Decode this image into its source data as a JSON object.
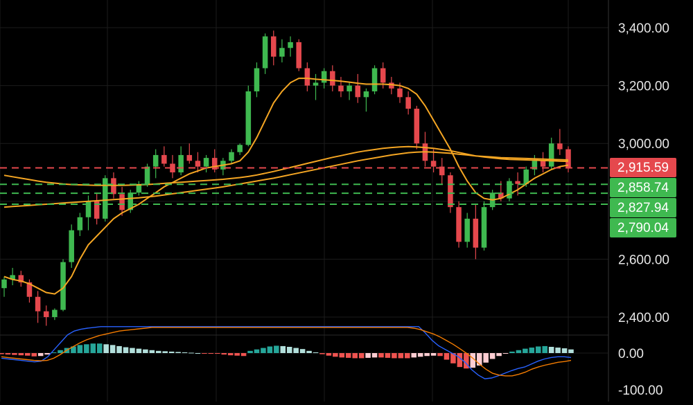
{
  "chart_data": [
    {
      "type": "candlestick",
      "title": "",
      "ylim": [
        2350,
        3450
      ],
      "y_ticks": [
        2400,
        2600,
        3000,
        3200,
        3400
      ],
      "y_tick_labels": [
        "2,400.00",
        "2,600.00",
        "3,000.00",
        "3,200.00",
        "3,400.00"
      ],
      "grid": true,
      "colors": {
        "up": "#3fb950",
        "down": "#e5484d",
        "ma": "#f5a623",
        "background": "#000000"
      },
      "candles": [
        [
          2500,
          2540,
          2470,
          2530
        ],
        [
          2530,
          2570,
          2510,
          2545
        ],
        [
          2545,
          2560,
          2505,
          2520
        ],
        [
          2520,
          2530,
          2450,
          2470
        ],
        [
          2470,
          2490,
          2380,
          2420
        ],
        [
          2420,
          2440,
          2370,
          2400
        ],
        [
          2400,
          2430,
          2390,
          2425
        ],
        [
          2425,
          2600,
          2420,
          2590
        ],
        [
          2590,
          2720,
          2570,
          2700
        ],
        [
          2700,
          2760,
          2680,
          2745
        ],
        [
          2745,
          2820,
          2700,
          2800
        ],
        [
          2800,
          2830,
          2720,
          2740
        ],
        [
          2740,
          2890,
          2730,
          2880
        ],
        [
          2880,
          2900,
          2810,
          2825
        ],
        [
          2825,
          2850,
          2750,
          2770
        ],
        [
          2770,
          2840,
          2760,
          2830
        ],
        [
          2830,
          2870,
          2820,
          2860
        ],
        [
          2860,
          2930,
          2850,
          2920
        ],
        [
          2920,
          2980,
          2880,
          2960
        ],
        [
          2960,
          2990,
          2920,
          2930
        ],
        [
          2930,
          2960,
          2880,
          2900
        ],
        [
          2900,
          2990,
          2890,
          2960
        ],
        [
          2960,
          3000,
          2930,
          2940
        ],
        [
          2940,
          2970,
          2900,
          2920
        ],
        [
          2920,
          2960,
          2900,
          2950
        ],
        [
          2950,
          2980,
          2900,
          2910
        ],
        [
          2910,
          2950,
          2890,
          2940
        ],
        [
          2940,
          2980,
          2930,
          2970
        ],
        [
          2970,
          3000,
          2960,
          2995
        ],
        [
          2995,
          3200,
          2990,
          3180
        ],
        [
          3180,
          3280,
          3160,
          3260
        ],
        [
          3260,
          3380,
          3240,
          3370
        ],
        [
          3370,
          3390,
          3270,
          3300
        ],
        [
          3300,
          3360,
          3280,
          3330
        ],
        [
          3330,
          3370,
          3300,
          3350
        ],
        [
          3350,
          3360,
          3250,
          3260
        ],
        [
          3260,
          3280,
          3180,
          3200
        ],
        [
          3200,
          3240,
          3150,
          3210
        ],
        [
          3210,
          3260,
          3190,
          3250
        ],
        [
          3250,
          3270,
          3180,
          3200
        ],
        [
          3200,
          3230,
          3160,
          3180
        ],
        [
          3180,
          3210,
          3150,
          3200
        ],
        [
          3200,
          3240,
          3140,
          3160
        ],
        [
          3160,
          3190,
          3110,
          3180
        ],
        [
          3180,
          3270,
          3170,
          3260
        ],
        [
          3260,
          3280,
          3190,
          3210
        ],
        [
          3210,
          3230,
          3170,
          3190
        ],
        [
          3190,
          3210,
          3140,
          3160
        ],
        [
          3160,
          3180,
          3100,
          3120
        ],
        [
          3120,
          3130,
          2980,
          3000
        ],
        [
          3000,
          3040,
          2920,
          2940
        ],
        [
          2940,
          2980,
          2900,
          2920
        ],
        [
          2920,
          2950,
          2860,
          2890
        ],
        [
          2890,
          2900,
          2760,
          2780
        ],
        [
          2780,
          2800,
          2640,
          2660
        ],
        [
          2660,
          2760,
          2640,
          2740
        ],
        [
          2740,
          2790,
          2600,
          2640
        ],
        [
          2640,
          2800,
          2630,
          2780
        ],
        [
          2780,
          2840,
          2770,
          2830
        ],
        [
          2830,
          2870,
          2800,
          2810
        ],
        [
          2810,
          2880,
          2800,
          2870
        ],
        [
          2870,
          2900,
          2820,
          2860
        ],
        [
          2860,
          2920,
          2850,
          2910
        ],
        [
          2910,
          2960,
          2890,
          2940
        ],
        [
          2940,
          2970,
          2900,
          2920
        ],
        [
          2920,
          3020,
          2910,
          3000
        ],
        [
          3000,
          3050,
          2960,
          2980
        ],
        [
          2980,
          2990,
          2900,
          2916
        ]
      ],
      "moving_averages": [
        {
          "values": [
            2540,
            2530,
            2525,
            2515,
            2500,
            2485,
            2480,
            2500,
            2540,
            2600,
            2650,
            2680,
            2710,
            2740,
            2760,
            2775,
            2790,
            2810,
            2830,
            2850,
            2865,
            2880,
            2895,
            2905,
            2915,
            2920,
            2925,
            2930,
            2940,
            2970,
            3020,
            3080,
            3140,
            3180,
            3210,
            3225,
            3225,
            3222,
            3220,
            3218,
            3215,
            3212,
            3208,
            3205,
            3205,
            3205,
            3203,
            3200,
            3190,
            3170,
            3130,
            3080,
            3030,
            2980,
            2920,
            2870,
            2830,
            2810,
            2805,
            2810,
            2825,
            2840,
            2860,
            2880,
            2895,
            2910,
            2920,
            2925
          ]
        },
        {
          "values": [
            2890,
            2885,
            2880,
            2875,
            2870,
            2866,
            2863,
            2860,
            2858,
            2857,
            2856,
            2855,
            2855,
            2855,
            2855,
            2856,
            2857,
            2858,
            2860,
            2862,
            2864,
            2866,
            2868,
            2870,
            2872,
            2874,
            2876,
            2879,
            2882,
            2886,
            2891,
            2897,
            2903,
            2910,
            2917,
            2924,
            2931,
            2938,
            2945,
            2952,
            2958,
            2964,
            2970,
            2975,
            2979,
            2983,
            2986,
            2988,
            2989,
            2988,
            2986,
            2983,
            2979,
            2975,
            2969,
            2963,
            2957,
            2953,
            2950,
            2947,
            2945,
            2944,
            2943,
            2942,
            2941,
            2940,
            2939,
            2938
          ]
        },
        {
          "values": [
            2780,
            2782,
            2784,
            2786,
            2788,
            2790,
            2792,
            2794,
            2796,
            2798,
            2800,
            2802,
            2804,
            2806,
            2808,
            2810,
            2812,
            2815,
            2818,
            2822,
            2826,
            2830,
            2834,
            2838,
            2842,
            2846,
            2850,
            2855,
            2860,
            2865,
            2870,
            2875,
            2880,
            2886,
            2892,
            2898,
            2904,
            2910,
            2916,
            2922,
            2928,
            2934,
            2940,
            2945,
            2950,
            2955,
            2960,
            2964,
            2968,
            2970,
            2971,
            2970,
            2968,
            2966,
            2963,
            2960,
            2957,
            2955,
            2953,
            2951,
            2950,
            2949,
            2948,
            2947,
            2946,
            2945,
            2944,
            2943
          ]
        }
      ],
      "price_lines": [
        {
          "value": 2915.59,
          "label": "2,915.59",
          "color": "#e5484d"
        },
        {
          "value": 2858.74,
          "label": "2,858.74",
          "color": "#3fb950"
        },
        {
          "value": 2827.94,
          "label": "2,827.94",
          "color": "#3fb950"
        },
        {
          "value": 2790.04,
          "label": "2,790.04",
          "color": "#3fb950"
        }
      ]
    },
    {
      "type": "histogram",
      "title": "",
      "ylim": [
        -140,
        60
      ],
      "y_ticks": [
        0,
        -100
      ],
      "y_tick_labels": [
        "0.00",
        "-100.00"
      ],
      "colors": {
        "pos_strong": "#26a69a",
        "pos_weak": "#b2dfdb",
        "neg_strong": "#ef5350",
        "neg_weak": "#ffcdd2",
        "macd": "#2962ff",
        "signal": "#f57c00"
      },
      "histogram": [
        -3,
        -4,
        -5,
        -6,
        -7,
        -9,
        -8,
        -4,
        2,
        8,
        14,
        18,
        22,
        24,
        26,
        26,
        24,
        22,
        19,
        16,
        14,
        12,
        10,
        8,
        6,
        5,
        4,
        3,
        2,
        1,
        0,
        -1,
        -2,
        -2,
        -4,
        -6,
        -7,
        -8,
        6,
        10,
        14,
        18,
        20,
        19,
        17,
        14,
        11,
        6,
        2,
        -3,
        -7,
        -10,
        -12,
        -13,
        -14,
        -14,
        -13,
        -12,
        -12,
        -13,
        -14,
        -14,
        -14,
        -12,
        -10,
        -8,
        -7,
        -8,
        -18,
        -28,
        -38,
        -42,
        -40,
        -34,
        -26,
        -16,
        -8,
        -1,
        4,
        8,
        12,
        15,
        18,
        19,
        17,
        15,
        13,
        10
      ],
      "macd": [
        -14,
        -16,
        -18,
        -20,
        -22,
        -24,
        -22,
        -10,
        10,
        30,
        50,
        60,
        65,
        68,
        70,
        72,
        72,
        72,
        72,
        72,
        72,
        72,
        72,
        72,
        72,
        72,
        72,
        72,
        72,
        72,
        72,
        72,
        72,
        72,
        72,
        72,
        72,
        72,
        72,
        72,
        72,
        72,
        72,
        72,
        72,
        72,
        72,
        72,
        72,
        72,
        72,
        72,
        72,
        72,
        72,
        72,
        72,
        72,
        72,
        72,
        72,
        72,
        72,
        72,
        55,
        35,
        20,
        10,
        0,
        -10,
        -25,
        -45,
        -60,
        -70,
        -68,
        -62,
        -55,
        -48,
        -42,
        -38,
        -30,
        -22,
        -16,
        -12,
        -10,
        -10,
        -12
      ],
      "signal": [
        -10,
        -12,
        -14,
        -16,
        -18,
        -20,
        -21,
        -20,
        -14,
        -4,
        8,
        18,
        28,
        36,
        42,
        48,
        52,
        56,
        60,
        62,
        64,
        66,
        68,
        70,
        70,
        70,
        70,
        70,
        70,
        70,
        70,
        70,
        70,
        70,
        70,
        70,
        70,
        70,
        70,
        70,
        70,
        70,
        70,
        70,
        70,
        70,
        70,
        70,
        70,
        70,
        70,
        70,
        70,
        70,
        70,
        70,
        70,
        70,
        70,
        70,
        70,
        70,
        70,
        68,
        64,
        58,
        52,
        44,
        34,
        24,
        12,
        0,
        -14,
        -30,
        -44,
        -55,
        -60,
        -62,
        -62,
        -58,
        -52,
        -44,
        -38,
        -33,
        -29,
        -25,
        -23,
        -20
      ]
    }
  ]
}
